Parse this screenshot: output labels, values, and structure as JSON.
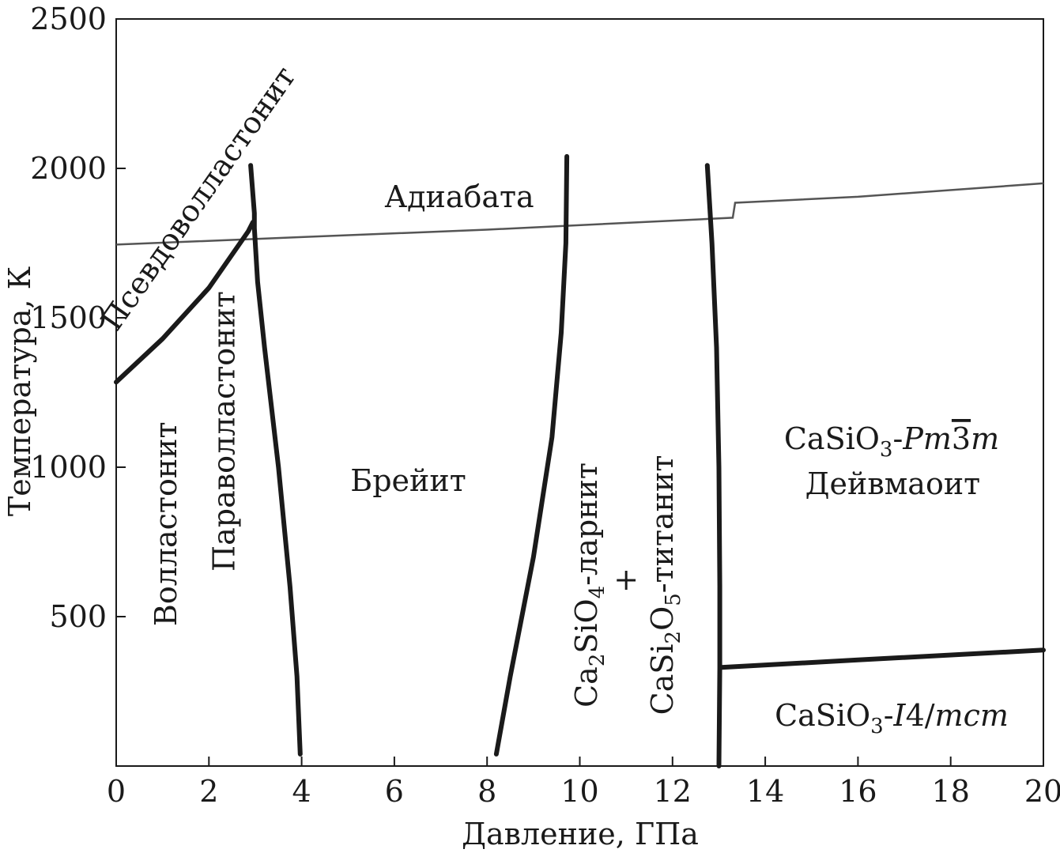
{
  "chart_data": {
    "type": "line",
    "xlabel": "Давление, ГПа",
    "ylabel": "Температура, К",
    "xlim": [
      0,
      20
    ],
    "ylim": [
      0,
      2500
    ],
    "x_ticks": [
      0,
      2,
      4,
      6,
      8,
      10,
      12,
      14,
      16,
      18,
      20
    ],
    "y_ticks": [
      500,
      1000,
      1500,
      2000,
      2500
    ],
    "grid": false,
    "boundaries": [
      {
        "name": "",
        "points": [
          [
            0,
            1285
          ],
          [
            1,
            1430
          ],
          [
            2,
            1600
          ],
          [
            2.85,
            1790
          ],
          [
            2.95,
            1820
          ]
        ]
      },
      {
        "name": "",
        "points": [
          [
            2.9,
            2010
          ],
          [
            2.98,
            1850
          ],
          [
            2.98,
            1800
          ],
          [
            3.05,
            1620
          ],
          [
            3.2,
            1400
          ],
          [
            3.5,
            1000
          ],
          [
            3.75,
            600
          ],
          [
            3.9,
            300
          ],
          [
            3.97,
            40
          ]
        ]
      },
      {
        "name": "",
        "points": [
          [
            8.2,
            40
          ],
          [
            8.5,
            300
          ],
          [
            9.0,
            700
          ],
          [
            9.4,
            1100
          ],
          [
            9.6,
            1450
          ],
          [
            9.7,
            1750
          ],
          [
            9.72,
            2040
          ]
        ]
      },
      {
        "name": "",
        "points": [
          [
            12.75,
            2010
          ],
          [
            12.85,
            1750
          ],
          [
            12.95,
            1400
          ],
          [
            13.0,
            1000
          ],
          [
            13.02,
            600
          ],
          [
            13.02,
            330
          ],
          [
            13.0,
            0
          ]
        ]
      },
      {
        "name": "",
        "points": [
          [
            13.05,
            330
          ],
          [
            16,
            355
          ],
          [
            20,
            388
          ]
        ]
      }
    ],
    "adiabat": {
      "name": "Адиабата",
      "points": [
        [
          0,
          1745
        ],
        [
          4,
          1770
        ],
        [
          8,
          1795
        ],
        [
          12,
          1825
        ],
        [
          13.3,
          1835
        ],
        [
          13.35,
          1885
        ],
        [
          16,
          1905
        ],
        [
          20,
          1950
        ]
      ]
    },
    "annotations": [
      {
        "text": "Псевдоволластонит",
        "x": 1.95,
        "y": 1880,
        "rotation": -55
      },
      {
        "text": "Адиабата",
        "x": 7.4,
        "y": 1870,
        "rotation": 0
      },
      {
        "text": "Параволластонит",
        "x": 2.55,
        "y": 1120,
        "rotation": -90
      },
      {
        "text": "Волластонит",
        "x": 1.3,
        "y": 810,
        "rotation": -90
      },
      {
        "text": "Брейит",
        "x": 6.3,
        "y": 920,
        "rotation": 0
      },
      {
        "text": "+",
        "x": 11.0,
        "y": 590,
        "rotation": 0
      },
      {
        "text": "Дейвмаоит",
        "x": 16.75,
        "y": 910,
        "rotation": 0
      }
    ],
    "formula_labels": {
      "larnite": {
        "a": "Ca",
        "a_sub": "2",
        "b": "SiO",
        "b_sub": "4",
        "rest": "-ларнит"
      },
      "titanite": {
        "a": "CaSi",
        "a_sub": "2",
        "b": "O",
        "b_sub": "5",
        "rest": "-титанит"
      },
      "cubic": {
        "a": "CaSiO",
        "a_sub": "3",
        "dash": "-",
        "it1": "Pm",
        "bar": "3",
        "it2": "m"
      },
      "tetragonal": {
        "a": "CaSiO",
        "a_sub": "3",
        "dash": "-",
        "it1": "I",
        "num": "4/",
        "it2": "mcm"
      }
    }
  }
}
